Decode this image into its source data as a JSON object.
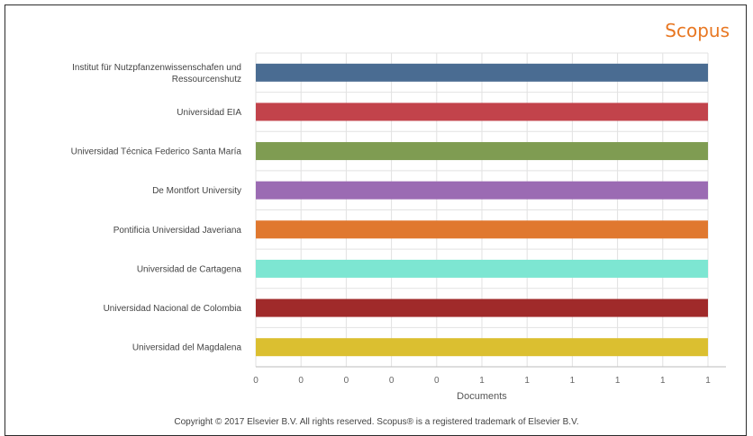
{
  "brand": "Scopus",
  "copyright": "Copyright © 2017 Elsevier B.V. All rights reserved. Scopus® is a registered trademark of Elsevier B.V.",
  "chart_data": {
    "type": "bar",
    "orientation": "horizontal",
    "categories": [
      "Institut für Nutzpfanzenwissenschafen und Ressourcenshutz",
      "Universidad EIA",
      "Universidad Técnica Federico Santa María",
      "De Montfort University",
      "Pontificia Universidad Javeriana",
      "Universidad de Cartagena",
      "Universidad Nacional de Colombia",
      "Universidad del Magdalena"
    ],
    "category_label_lines": [
      [
        "Institut für Nutzpfanzenwissenschafen und",
        "Ressourcenshutz"
      ],
      [
        "Universidad EIA"
      ],
      [
        "Universidad Técnica Federico Santa María"
      ],
      [
        "De Montfort University"
      ],
      [
        "Pontificia Universidad Javeriana"
      ],
      [
        "Universidad de Cartagena"
      ],
      [
        "Universidad Nacional de Colombia"
      ],
      [
        "Universidad del Magdalena"
      ]
    ],
    "values": [
      1,
      1,
      1,
      1,
      1,
      1,
      1,
      1
    ],
    "colors": [
      "#4a6c92",
      "#c2434b",
      "#7f9c52",
      "#9b6bb3",
      "#e0782f",
      "#7de6d2",
      "#a02a2a",
      "#dbbf30"
    ],
    "xlim": [
      0,
      1
    ],
    "xticks": [
      0,
      0.1,
      0.2,
      0.3,
      0.4,
      0.5,
      0.6,
      0.7,
      0.8,
      0.9,
      1
    ],
    "xtick_labels": [
      "0",
      "0",
      "0",
      "0",
      "0",
      "1",
      "1",
      "1",
      "1",
      "1",
      "1"
    ],
    "xlabel": "Documents",
    "grid": true
  }
}
